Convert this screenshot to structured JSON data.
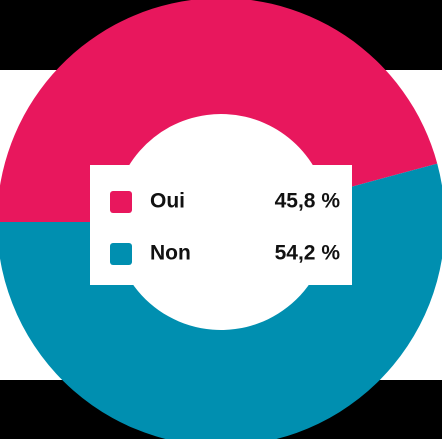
{
  "chart_data": {
    "type": "donut",
    "categories": [
      "Oui",
      "Non"
    ],
    "values": [
      45.8,
      54.2
    ],
    "value_labels": [
      "45,8 %",
      "54,2 %"
    ],
    "colors": [
      "#e8175d",
      "#008fb0"
    ]
  }
}
